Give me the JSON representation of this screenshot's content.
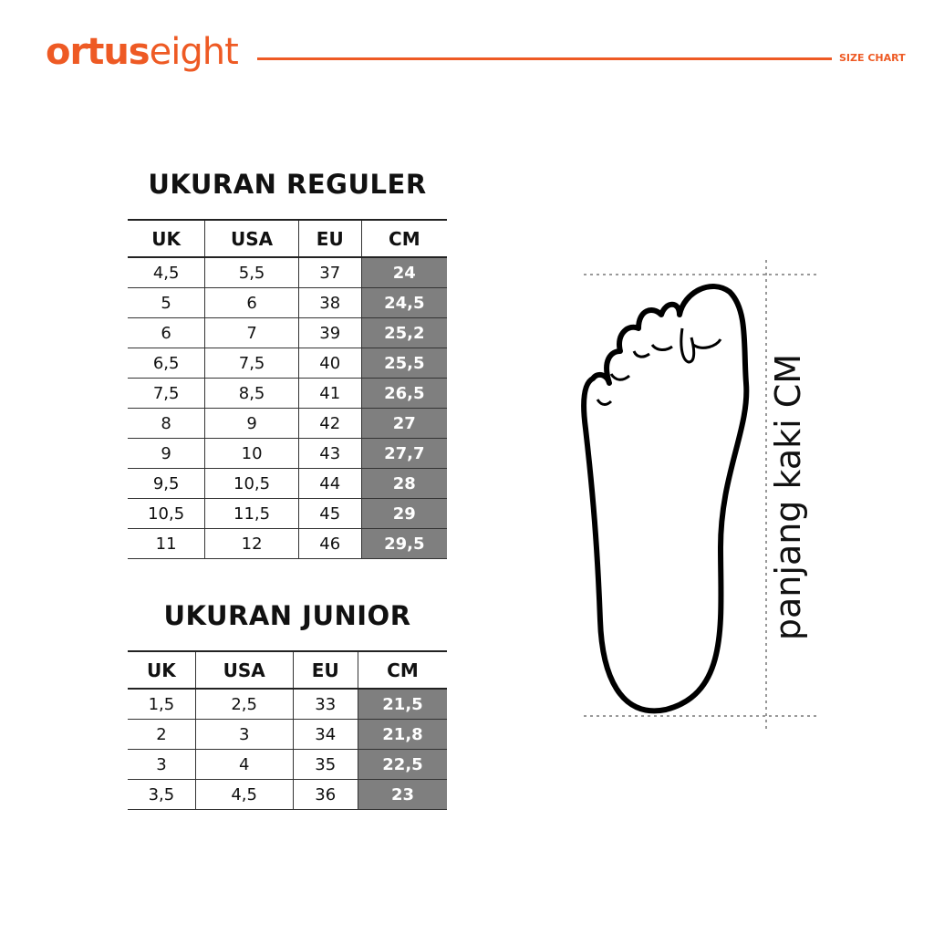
{
  "brand": {
    "logo_bold": "ortus",
    "logo_light": "eight",
    "tag": "SIZE CHART",
    "color": "#ee5a24"
  },
  "regular": {
    "title": "UKURAN REGULER",
    "headers": [
      "UK",
      "USA",
      "EU",
      "CM"
    ],
    "rows": [
      [
        "4,5",
        "5,5",
        "37",
        "24"
      ],
      [
        "5",
        "6",
        "38",
        "24,5"
      ],
      [
        "6",
        "7",
        "39",
        "25,2"
      ],
      [
        "6,5",
        "7,5",
        "40",
        "25,5"
      ],
      [
        "7,5",
        "8,5",
        "41",
        "26,5"
      ],
      [
        "8",
        "9",
        "42",
        "27"
      ],
      [
        "9",
        "10",
        "43",
        "27,7"
      ],
      [
        "9,5",
        "10,5",
        "44",
        "28"
      ],
      [
        "10,5",
        "11,5",
        "45",
        "29"
      ],
      [
        "11",
        "12",
        "46",
        "29,5"
      ]
    ]
  },
  "junior": {
    "title": "UKURAN JUNIOR",
    "headers": [
      "UK",
      "USA",
      "EU",
      "CM"
    ],
    "rows": [
      [
        "1,5",
        "2,5",
        "33",
        "21,5"
      ],
      [
        "2",
        "3",
        "34",
        "21,8"
      ],
      [
        "3",
        "4",
        "35",
        "22,5"
      ],
      [
        "3,5",
        "4,5",
        "36",
        "23"
      ]
    ]
  },
  "diagram": {
    "label": "panjang kaki CM"
  }
}
